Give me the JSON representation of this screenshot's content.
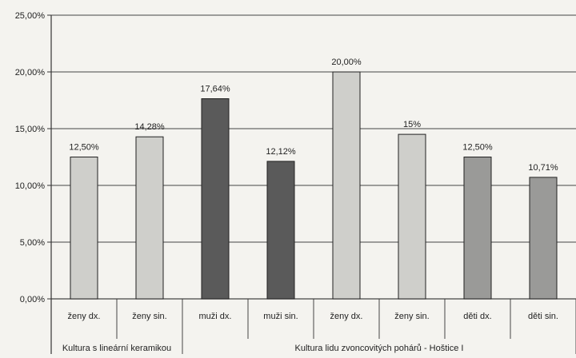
{
  "chart_data": {
    "type": "bar",
    "title": "",
    "xlabel": "",
    "ylabel": "",
    "ylim": [
      0,
      25
    ],
    "yticks": [
      0,
      5,
      10,
      15,
      20,
      25
    ],
    "ytick_labels": [
      "0,00%",
      "5,00%",
      "10,00%",
      "15,00%",
      "20,00%",
      "25,00%"
    ],
    "grid": true,
    "categories": [
      "ženy dx.",
      "ženy sin.",
      "muži dx.",
      "muži sin.",
      "ženy dx.",
      "ženy sin.",
      "děti dx.",
      "děti sin."
    ],
    "values": [
      12.5,
      14.28,
      17.64,
      12.12,
      20.0,
      14.5,
      12.5,
      10.71
    ],
    "value_labels": [
      "12,50%",
      "14,28%",
      "17,64%",
      "12,12%",
      "20,00%",
      "15%",
      "12,50%",
      "10,71%"
    ],
    "bar_colors": [
      "#cfcfcb",
      "#cfcfcb",
      "#5a5a5a",
      "#5a5a5a",
      "#cfcfcb",
      "#cfcfcb",
      "#9a9a98",
      "#9a9a98"
    ],
    "groups": [
      {
        "label": "Kultura s lineární keramikou",
        "span": 2
      },
      {
        "label": "Kultura lidu zvoncovitých pohárů - Hoštice I",
        "span": 6
      }
    ]
  },
  "colors": {
    "background": "#f4f3ef",
    "axis": "#333333",
    "gridline": "#444444",
    "bar_outline": "#222222"
  }
}
